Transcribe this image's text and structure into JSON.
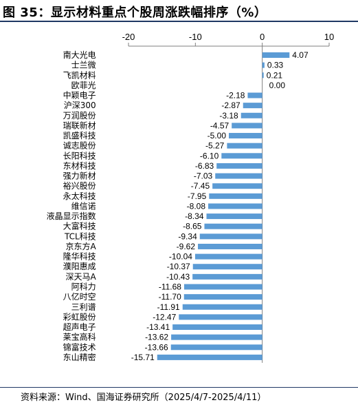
{
  "figure": {
    "title": "图 35：显示材料重点个股周涨跌幅排序（%）",
    "source": "资料来源：Wind、国海证券研究所（2025/4/7-2025/4/11）"
  },
  "chart_data": {
    "type": "bar",
    "orientation": "horizontal",
    "title": "图 35：显示材料重点个股周涨跌幅排序（%）",
    "xlabel": "",
    "ylabel": "",
    "xlim": [
      -20,
      10
    ],
    "xticks": [
      -20,
      -10,
      0,
      10
    ],
    "xtick_labels": [
      "-20",
      "-10",
      "0",
      "10"
    ],
    "axis_position": "top",
    "grid": false,
    "bar_color": "#5b9bd5",
    "categories": [
      "南大光电",
      "士兰微",
      "飞凯材料",
      "欧菲光",
      "中颖电子",
      "沪深300",
      "万润股份",
      "瑞联新材",
      "凯盛科技",
      "诚志股份",
      "长阳科技",
      "东材科技",
      "强力新材",
      "裕兴股份",
      "永太科技",
      "维信诺",
      "液晶显示指数",
      "大富科技",
      "TCL科技",
      "京东方A",
      "隆华科技",
      "濮阳惠成",
      "深天马A",
      "阿科力",
      "八亿时空",
      "三利谱",
      "彩虹股份",
      "超声电子",
      "莱宝高科",
      "锦富技术",
      "东山精密"
    ],
    "values": [
      4.07,
      0.33,
      0.21,
      0.0,
      -2.18,
      -2.87,
      -3.18,
      -4.57,
      -5.0,
      -5.27,
      -6.1,
      -6.83,
      -7.03,
      -7.45,
      -7.95,
      -8.08,
      -8.34,
      -8.65,
      -9.34,
      -9.62,
      -10.04,
      -10.37,
      -10.43,
      -11.68,
      -11.7,
      -11.91,
      -12.47,
      -13.41,
      -13.62,
      -13.66,
      -15.71
    ],
    "value_labels": [
      "4.07",
      "0.33",
      "0.21",
      "0.00",
      "-2.18",
      "-2.87",
      "-3.18",
      "-4.57",
      "-5.00",
      "-5.27",
      "-6.10",
      "-6.83",
      "-7.03",
      "-7.45",
      "-7.95",
      "-8.08",
      "-8.34",
      "-8.65",
      "-9.34",
      "-9.62",
      "-10.04",
      "-10.37",
      "-10.43",
      "-11.68",
      "-11.70",
      "-11.91",
      "-12.47",
      "-13.41",
      "-13.62",
      "-13.66",
      "-15.71"
    ]
  }
}
